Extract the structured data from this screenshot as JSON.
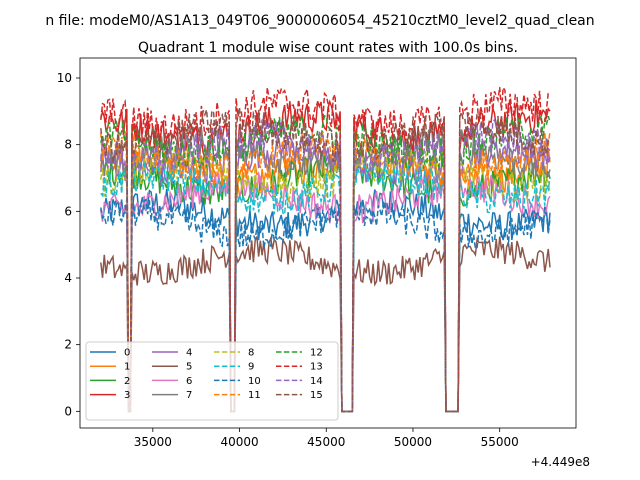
{
  "suptitle": "n file: modeM0/AS1A13_049T06_9000006054_45210cztM0_level2_quad_clean",
  "chart_data": {
    "type": "line",
    "title": "Quadrant 1 module wise count rates with 100.0s bins.",
    "xlabel": "",
    "ylabel": "",
    "x_offset_label": "+4.449e8",
    "xlim": [
      30800,
      59400
    ],
    "ylim": [
      -0.5,
      10.6
    ],
    "x_ticks": [
      35000,
      40000,
      45000,
      50000,
      55000
    ],
    "x_tick_labels": [
      "35000",
      "40000",
      "45000",
      "50000",
      "55000"
    ],
    "y_ticks": [
      0,
      2,
      4,
      6,
      8,
      10
    ],
    "y_tick_labels": [
      "0",
      "2",
      "4",
      "6",
      "8",
      "10"
    ],
    "x_range": [
      32000,
      57900
    ],
    "gaps": [
      [
        33550,
        33700
      ],
      [
        39500,
        39700
      ],
      [
        45850,
        46500
      ],
      [
        51900,
        52600
      ]
    ],
    "legend_location": "lower-left",
    "legend_columns": 4,
    "series": [
      {
        "name": "0",
        "color": "#1f77b4",
        "style": "solid",
        "mean": 5.9
      },
      {
        "name": "1",
        "color": "#ff7f0e",
        "style": "solid",
        "mean": 7.3
      },
      {
        "name": "2",
        "color": "#2ca02c",
        "style": "solid",
        "mean": 6.9
      },
      {
        "name": "3",
        "color": "#d62728",
        "style": "solid",
        "mean": 8.5
      },
      {
        "name": "4",
        "color": "#9467bd",
        "style": "solid",
        "mean": 7.5
      },
      {
        "name": "5",
        "color": "#8c564b",
        "style": "solid",
        "mean": 4.5
      },
      {
        "name": "6",
        "color": "#e377c2",
        "style": "solid",
        "mean": 6.4
      },
      {
        "name": "7",
        "color": "#7f7f7f",
        "style": "solid",
        "mean": 7.7
      },
      {
        "name": "8",
        "color": "#bcbd22",
        "style": "dashed",
        "mean": 7.1
      },
      {
        "name": "9",
        "color": "#17becf",
        "style": "dashed",
        "mean": 6.7
      },
      {
        "name": "10",
        "color": "#1f77b4",
        "style": "dashed",
        "mean": 5.6
      },
      {
        "name": "11",
        "color": "#ff7f0e",
        "style": "dashed",
        "mean": 7.6
      },
      {
        "name": "12",
        "color": "#2ca02c",
        "style": "dashed",
        "mean": 8.1
      },
      {
        "name": "13",
        "color": "#d62728",
        "style": "dashed",
        "mean": 8.9
      },
      {
        "name": "14",
        "color": "#9467bd",
        "style": "dashed",
        "mean": 7.9
      },
      {
        "name": "15",
        "color": "#8c564b",
        "style": "dashed",
        "mean": 8.3
      }
    ]
  }
}
